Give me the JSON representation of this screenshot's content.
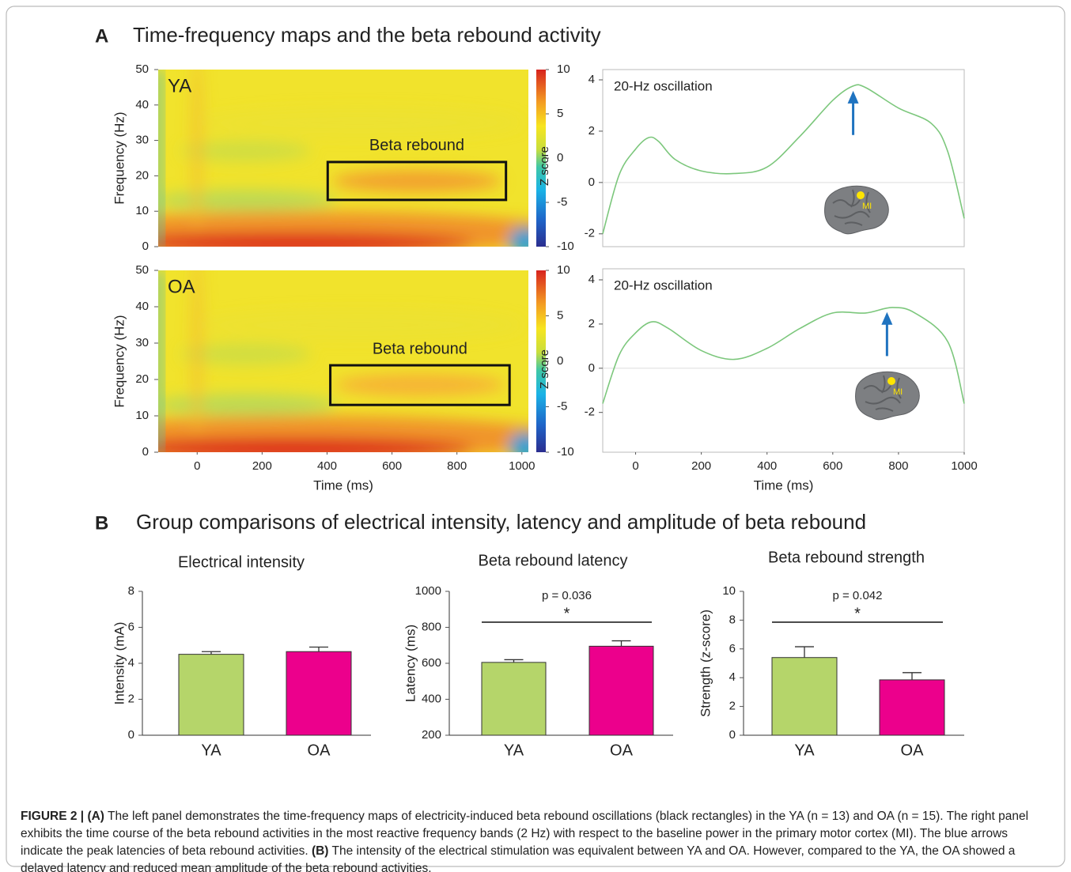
{
  "figure": {
    "panel_a": {
      "letter": "A",
      "title": "Time-frequency maps and the beta rebound activity"
    },
    "panel_b": {
      "letter": "B",
      "title": "Group comparisons of electrical intensity, latency and amplitude of beta rebound"
    }
  },
  "chart_data": [
    {
      "type": "heatmap",
      "label": "YA",
      "box_label": "Beta rebound",
      "ylabel": "Frequency (Hz)",
      "xlim": [
        -120,
        1020
      ],
      "ylim": [
        0,
        50
      ],
      "yticks": [
        0,
        10,
        20,
        30,
        40,
        50
      ],
      "colorbar": {
        "label": "Z score",
        "lim": [
          -10,
          10
        ],
        "ticks": [
          -10,
          -5,
          0,
          5,
          10
        ]
      }
    },
    {
      "type": "heatmap",
      "label": "OA",
      "box_label": "Beta rebound",
      "ylabel": "Frequency (Hz)",
      "xlabel": "Time (ms)",
      "xlim": [
        -120,
        1020
      ],
      "xticks": [
        0,
        200,
        400,
        600,
        800,
        1000
      ],
      "ylim": [
        0,
        50
      ],
      "yticks": [
        0,
        10,
        20,
        30,
        40,
        50
      ],
      "colorbar": {
        "label": "Z score",
        "lim": [
          -10,
          10
        ],
        "ticks": [
          -10,
          -5,
          0,
          5,
          10
        ]
      }
    },
    {
      "type": "line",
      "annotation": "20-Hz oscillation",
      "region_label": "MI",
      "xlim": [
        -100,
        1000
      ],
      "ylim": [
        -2.5,
        4.4
      ],
      "yticks": [
        -2,
        0,
        2,
        4
      ],
      "series": [
        {
          "color": "#7cc77c",
          "x": [
            -100,
            -50,
            0,
            40,
            70,
            120,
            200,
            300,
            400,
            500,
            600,
            660,
            700,
            800,
            900,
            950,
            1000
          ],
          "values": [
            -2,
            0.3,
            1.3,
            1.75,
            1.6,
            0.9,
            0.45,
            0.35,
            0.6,
            1.8,
            3.2,
            3.75,
            3.7,
            2.9,
            2.3,
            1.2,
            -1.4
          ]
        }
      ]
    },
    {
      "type": "line",
      "annotation": "20-Hz oscillation",
      "region_label": "MI",
      "xlabel": "Time (ms)",
      "xlim": [
        -100,
        1000
      ],
      "xticks": [
        0,
        200,
        400,
        600,
        800,
        1000
      ],
      "ylim": [
        -3.8,
        4.5
      ],
      "yticks": [
        -2,
        0,
        2,
        4
      ],
      "series": [
        {
          "color": "#7cc77c",
          "x": [
            -100,
            -50,
            0,
            50,
            100,
            200,
            300,
            400,
            500,
            600,
            700,
            780,
            850,
            950,
            1000
          ],
          "values": [
            -1.6,
            0.6,
            1.6,
            2.1,
            1.8,
            0.8,
            0.4,
            0.9,
            1.8,
            2.5,
            2.5,
            2.75,
            2.5,
            1.2,
            -1.6
          ]
        }
      ]
    },
    {
      "type": "bar",
      "title": "Electrical intensity",
      "ylabel": "Intensity (mA)",
      "categories": [
        "YA",
        "OA"
      ],
      "values": [
        4.5,
        4.65
      ],
      "errors": [
        0.15,
        0.25
      ],
      "colors": [
        "#b5d56a",
        "#ec008c"
      ],
      "ylim": [
        0,
        8
      ],
      "yticks": [
        0,
        2,
        4,
        6,
        8
      ]
    },
    {
      "type": "bar",
      "title": "Beta rebound latency",
      "ylabel": "Latency (ms)",
      "categories": [
        "YA",
        "OA"
      ],
      "values": [
        605,
        695
      ],
      "errors": [
        15,
        30
      ],
      "colors": [
        "#b5d56a",
        "#ec008c"
      ],
      "ylim": [
        200,
        1000
      ],
      "yticks": [
        200,
        400,
        600,
        800,
        1000
      ],
      "p_label": "p = 0.036",
      "significance": "*"
    },
    {
      "type": "bar",
      "title": "Beta rebound strength",
      "ylabel": "Strength (z-score)",
      "categories": [
        "YA",
        "OA"
      ],
      "values": [
        5.4,
        3.85
      ],
      "errors": [
        0.75,
        0.5
      ],
      "colors": [
        "#b5d56a",
        "#ec008c"
      ],
      "ylim": [
        0,
        10
      ],
      "yticks": [
        0,
        2,
        4,
        6,
        8,
        10
      ],
      "p_label": "p = 0.042",
      "significance": "*"
    }
  ],
  "caption": {
    "label": "FIGURE 2 |",
    "a": "(A)",
    "text_a": "The left panel demonstrates the time-frequency maps of electricity-induced beta rebound oscillations (black rectangles) in the YA (n = 13) and OA (n = 15). The right panel exhibits the time course of the beta rebound activities in the most reactive frequency bands (2 Hz) with respect to the baseline power in the primary motor cortex (MI). The blue arrows indicate the peak latencies of beta rebound activities.",
    "b": "(B)",
    "text_b": "The intensity of the electrical stimulation was equivalent between YA and OA. However, compared to the YA, the OA showed a delayed latency and reduced mean amplitude of the beta rebound activities."
  }
}
